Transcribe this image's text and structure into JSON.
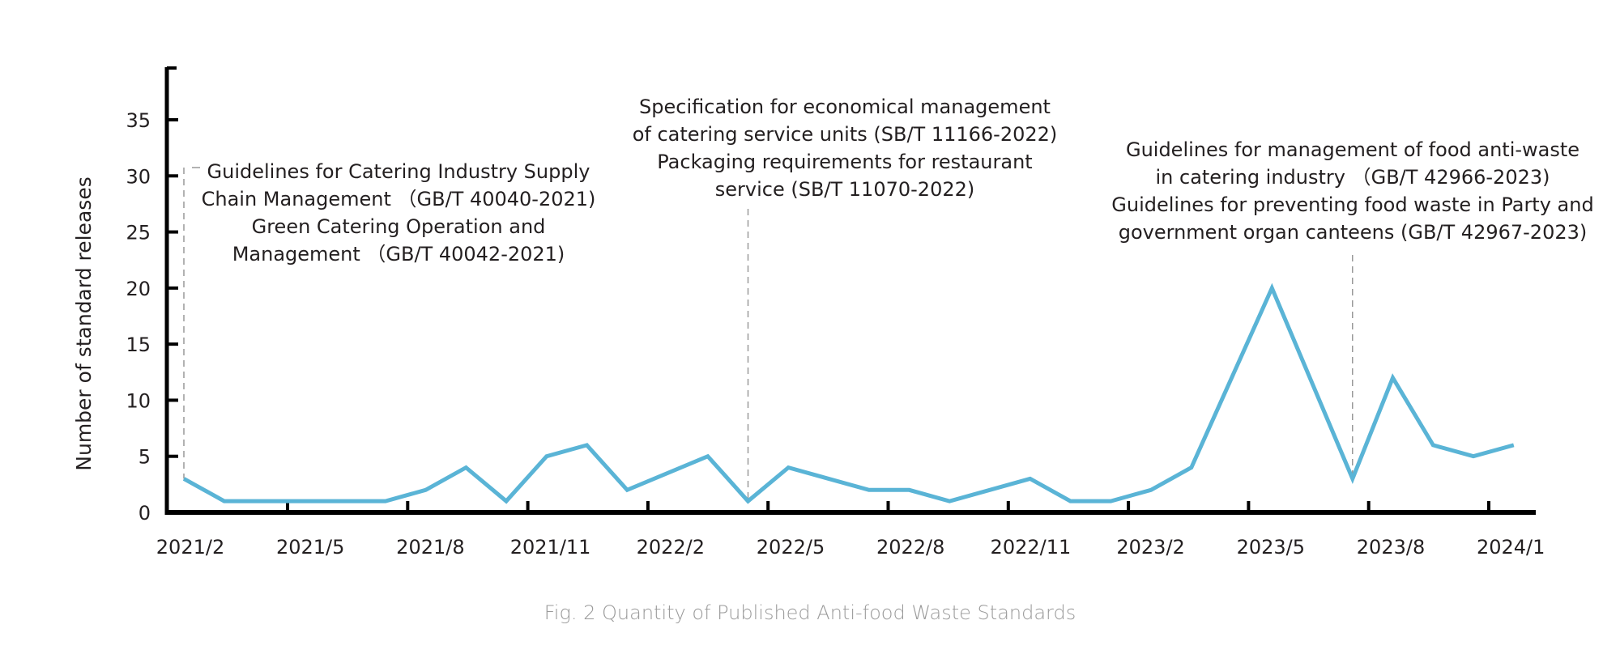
{
  "chart_data": {
    "type": "line",
    "title": "",
    "caption": "Fig. 2 Quantity of Published Anti-food Waste Standards",
    "xlabel": "",
    "ylabel": "Number of standard releases",
    "ylim": [
      0,
      40
    ],
    "yticks": [
      0,
      5,
      10,
      15,
      20,
      25,
      30,
      35
    ],
    "xtick_labels": [
      "2021/2",
      "2021/5",
      "2021/8",
      "2021/11",
      "2022/2",
      "2022/5",
      "2022/8",
      "2022/11",
      "2023/2",
      "2023/5",
      "2023/8",
      "2024/1"
    ],
    "grid": false,
    "legend": "none",
    "series": [
      {
        "name": "Standard releases",
        "color": "#5ab4d6",
        "points": [
          {
            "month_index": 0,
            "value": 3
          },
          {
            "month_index": 1,
            "value": 1
          },
          {
            "month_index": 5,
            "value": 1
          },
          {
            "month_index": 6,
            "value": 2
          },
          {
            "month_index": 7,
            "value": 4
          },
          {
            "month_index": 8,
            "value": 1
          },
          {
            "month_index": 9,
            "value": 5
          },
          {
            "month_index": 10,
            "value": 6
          },
          {
            "month_index": 11,
            "value": 2
          },
          {
            "month_index": 13,
            "value": 5
          },
          {
            "month_index": 14,
            "value": 1
          },
          {
            "month_index": 15,
            "value": 4
          },
          {
            "month_index": 17,
            "value": 2
          },
          {
            "month_index": 18,
            "value": 2
          },
          {
            "month_index": 19,
            "value": 1
          },
          {
            "month_index": 21,
            "value": 3
          },
          {
            "month_index": 22,
            "value": 1
          },
          {
            "month_index": 23,
            "value": 1
          },
          {
            "month_index": 24,
            "value": 2
          },
          {
            "month_index": 25,
            "value": 4
          },
          {
            "month_index": 27,
            "value": 20
          },
          {
            "month_index": 29,
            "value": 3
          },
          {
            "month_index": 30,
            "value": 12
          },
          {
            "month_index": 31,
            "value": 6
          },
          {
            "month_index": 32,
            "value": 5
          },
          {
            "month_index": 33,
            "value": 6
          }
        ]
      }
    ],
    "annotations": [
      {
        "at_month_index": 0,
        "lines": [
          "Guidelines for Catering Industry Supply",
          "Chain Management （GB/T 40040-2021)",
          "Green Catering Operation and",
          "Management （GB/T 40042-2021)"
        ]
      },
      {
        "at_month_index": 14,
        "lines": [
          "Specification for economical management",
          "of catering service units (SB/T 11166-2022)",
          "Packaging requirements for restaurant",
          "service (SB/T 11070-2022)"
        ]
      },
      {
        "at_month_index": 29,
        "lines": [
          "Guidelines for management of food anti-waste",
          "in catering industry （GB/T 42966-2023)",
          "Guidelines for preventing food waste in Party and",
          "government organ canteens (GB/T 42967-2023)"
        ]
      }
    ]
  }
}
